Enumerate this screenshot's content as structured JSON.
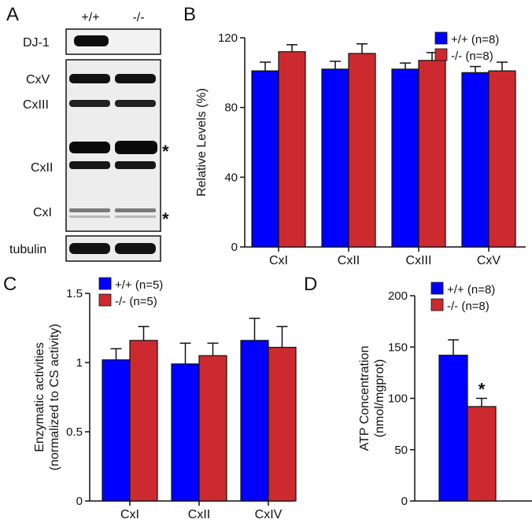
{
  "panels": {
    "a": "A",
    "b": "B",
    "c": "C",
    "d": "D"
  },
  "blot": {
    "lanes": [
      "+/+",
      "-/-"
    ],
    "dj1": "DJ-1",
    "complexes": [
      "CxV",
      "CxIII",
      "CxII",
      "CxI"
    ],
    "tubulin": "tubulin",
    "asterisk": "*"
  },
  "colors": {
    "wt": "#0000ff",
    "ko": "#cc2a2f"
  },
  "chart_data": [
    {
      "panel": "B",
      "type": "bar",
      "ylabel": "Relative Levels (%)",
      "xlabel": "",
      "categories": [
        "CxI",
        "CxII",
        "CxIII",
        "CxV"
      ],
      "ylim": [
        0,
        120
      ],
      "yticks": [
        "0",
        "40",
        "80",
        "120"
      ],
      "legend_position": "top-right",
      "series": [
        {
          "name": "+/+ (n=8)",
          "values": [
            101,
            102,
            102,
            100
          ],
          "errors": [
            5,
            4.5,
            3.5,
            3.5
          ]
        },
        {
          "name": "-/- (n=8)",
          "values": [
            112,
            111,
            107,
            101
          ],
          "errors": [
            4,
            5.5,
            4.5,
            5
          ]
        }
      ]
    },
    {
      "panel": "C",
      "type": "bar",
      "ylabel": "Enzymatic activities\n(normalized to CS activity)",
      "xlabel": "",
      "categories": [
        "CxI",
        "CxII",
        "CxIV"
      ],
      "ylim": [
        0,
        1.5
      ],
      "yticks": [
        "0",
        "0.5",
        "1",
        "1.5"
      ],
      "legend_position": "top-left",
      "series": [
        {
          "name": "+/+ (n=5)",
          "values": [
            1.02,
            0.99,
            1.16
          ],
          "errors": [
            0.08,
            0.15,
            0.16
          ]
        },
        {
          "name": "-/- (n=5)",
          "values": [
            1.16,
            1.05,
            1.11
          ],
          "errors": [
            0.1,
            0.09,
            0.15
          ]
        }
      ]
    },
    {
      "panel": "D",
      "type": "bar",
      "ylabel": "ATP Concentration\n(nmol/mgprot)",
      "xlabel": "",
      "categories": [
        ""
      ],
      "ylim": [
        0,
        200
      ],
      "yticks": [
        "0",
        "50",
        "100",
        "150",
        "200"
      ],
      "legend_position": "top-left",
      "annotation": "*",
      "series": [
        {
          "name": "+/+ (n=8)",
          "values": [
            142
          ],
          "errors": [
            15
          ]
        },
        {
          "name": "-/- (n=8)",
          "values": [
            92
          ],
          "errors": [
            8
          ]
        }
      ]
    }
  ]
}
